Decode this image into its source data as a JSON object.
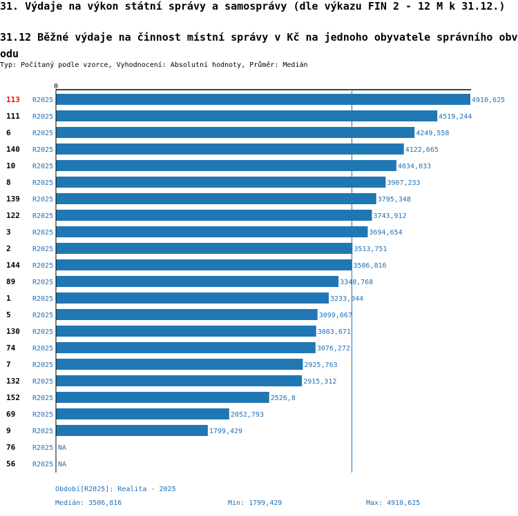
{
  "header": {
    "title": "31. Výdaje na výkon státní správy a samosprávy (dle výkazu FIN 2 - 12 M k 31.12.)",
    "subtitle": "31.12 Běžné výdaje na činnost místní správy v Kč na jednoho obyvatele správního obvodu",
    "type_line": "Typ: Počítaný podle vzorce, Vyhodnocení: Absolutní hodnoty, Průměr: Medián"
  },
  "colors": {
    "bar": "#1f77b4",
    "accent_text": "#1f6fb3",
    "highlight": "#ff0000"
  },
  "chart_data": {
    "type": "bar",
    "orientation": "horizontal",
    "axis_start_label": "0",
    "x_max": 4910.625,
    "median": 3506.816,
    "period_label": "R2025",
    "rows": [
      {
        "id": "113",
        "value": 4910.625,
        "label": "4910,625",
        "highlight": true
      },
      {
        "id": "111",
        "value": 4519.244,
        "label": "4519,244"
      },
      {
        "id": "6",
        "value": 4249.558,
        "label": "4249,558"
      },
      {
        "id": "140",
        "value": 4122.665,
        "label": "4122,665"
      },
      {
        "id": "10",
        "value": 4034.033,
        "label": "4034,033"
      },
      {
        "id": "8",
        "value": 3907.233,
        "label": "3907,233"
      },
      {
        "id": "139",
        "value": 3795.348,
        "label": "3795,348"
      },
      {
        "id": "122",
        "value": 3743.912,
        "label": "3743,912"
      },
      {
        "id": "3",
        "value": 3694.654,
        "label": "3694,654"
      },
      {
        "id": "2",
        "value": 3513.751,
        "label": "3513,751"
      },
      {
        "id": "144",
        "value": 3506.816,
        "label": "3506,816"
      },
      {
        "id": "89",
        "value": 3348.768,
        "label": "3348,768"
      },
      {
        "id": "1",
        "value": 3233.044,
        "label": "3233,044"
      },
      {
        "id": "5",
        "value": 3099.667,
        "label": "3099,667"
      },
      {
        "id": "130",
        "value": 3083.671,
        "label": "3083,671"
      },
      {
        "id": "74",
        "value": 3076.272,
        "label": "3076,272"
      },
      {
        "id": "7",
        "value": 2925.763,
        "label": "2925,763"
      },
      {
        "id": "132",
        "value": 2915.312,
        "label": "2915,312"
      },
      {
        "id": "152",
        "value": 2526.8,
        "label": "2526,8"
      },
      {
        "id": "69",
        "value": 2052.793,
        "label": "2052,793"
      },
      {
        "id": "9",
        "value": 1799.429,
        "label": "1799,429"
      },
      {
        "id": "76",
        "value": null,
        "label": "NA"
      },
      {
        "id": "56",
        "value": null,
        "label": "NA"
      }
    ]
  },
  "footer": {
    "period": "Období[R2025]: Realita - 2025",
    "median": "Medián: 3506,816",
    "min": "Min: 1799,429",
    "max": "Max: 4910,625"
  }
}
